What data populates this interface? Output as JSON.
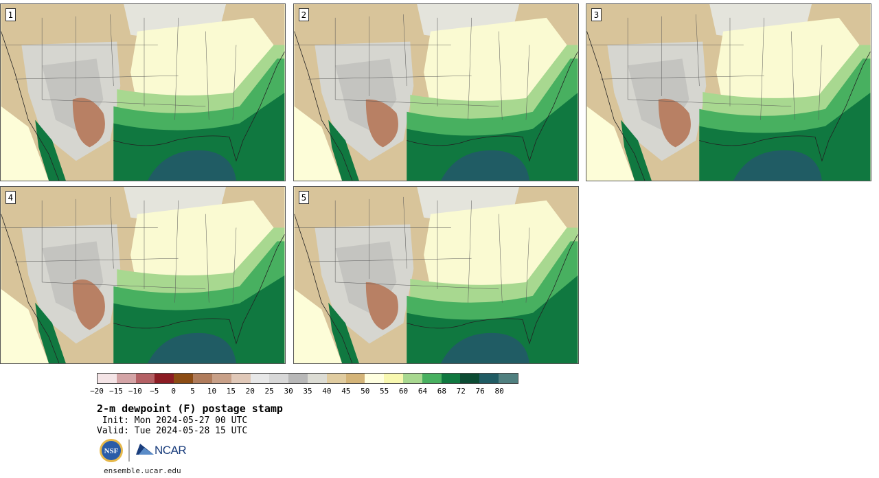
{
  "panels": [
    {
      "label": "1"
    },
    {
      "label": "2"
    },
    {
      "label": "3"
    },
    {
      "label": "4"
    },
    {
      "label": "5"
    }
  ],
  "colorbar": {
    "colors": [
      "#f4e4e6",
      "#d4a4a6",
      "#b46064",
      "#8c1c24",
      "#8c4c14",
      "#b07c5c",
      "#c8a088",
      "#e0c8b8",
      "#e8e8e8",
      "#d8d8d8",
      "#b8b8b8",
      "#dcdcd4",
      "#e0ccA0",
      "#d4b478",
      "#ffffe0",
      "#f8f8b0",
      "#a8d890",
      "#48b060",
      "#107840",
      "#0c4c34",
      "#205c64",
      "#508080"
    ],
    "ticks": [
      "−20",
      "−15",
      "−10",
      "−5",
      "0",
      "5",
      "10",
      "15",
      "20",
      "25",
      "30",
      "35",
      "40",
      "45",
      "50",
      "55",
      "60",
      "64",
      "68",
      "72",
      "76",
      "80"
    ]
  },
  "title": "2-m dewpoint (F) postage stamp",
  "init": " Init: Mon 2024-05-27 00 UTC",
  "valid": "Valid: Tue 2024-05-28 15 UTC",
  "logos": {
    "nsf": "NSF",
    "ncar": "NCAR"
  },
  "url": "ensemble.ucar.edu"
}
